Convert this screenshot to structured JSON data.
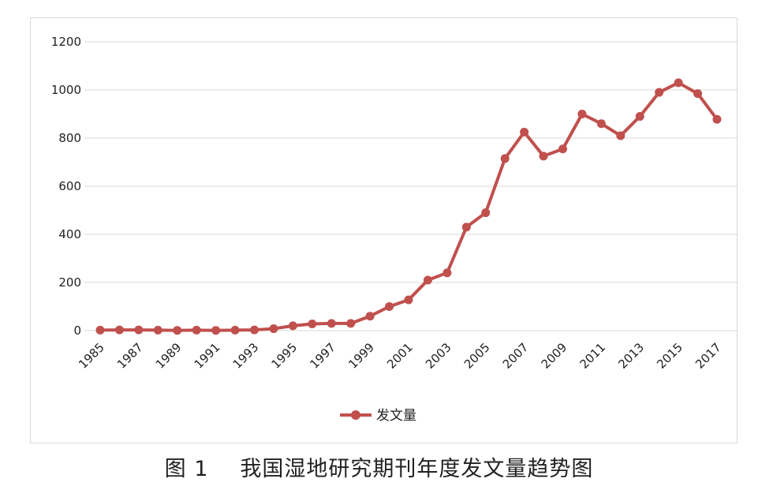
{
  "chart_data": {
    "type": "line",
    "x": [
      1985,
      1986,
      1987,
      1988,
      1989,
      1990,
      1991,
      1992,
      1993,
      1994,
      1995,
      1996,
      1997,
      1998,
      1999,
      2000,
      2001,
      2002,
      2003,
      2004,
      2005,
      2006,
      2007,
      2008,
      2009,
      2010,
      2011,
      2012,
      2013,
      2014,
      2015,
      2016,
      2017
    ],
    "x_tick_labels": [
      "1985",
      "1987",
      "1989",
      "1991",
      "1993",
      "1995",
      "1997",
      "1999",
      "2001",
      "2003",
      "2005",
      "2007",
      "2009",
      "2011",
      "2013",
      "2015",
      "2017"
    ],
    "series": [
      {
        "name": "发文量",
        "color": "#c0504d",
        "values": [
          2,
          3,
          3,
          2,
          1,
          2,
          1,
          2,
          3,
          8,
          20,
          28,
          30,
          30,
          60,
          100,
          128,
          210,
          240,
          430,
          490,
          715,
          825,
          725,
          755,
          900,
          860,
          810,
          890,
          990,
          1030,
          985,
          878
        ]
      }
    ],
    "ylim": [
      0,
      1200
    ],
    "y_ticks": [
      0,
      200,
      400,
      600,
      800,
      1000,
      1200
    ],
    "grid": true,
    "legend_position": "bottom"
  },
  "caption": {
    "figure_number": "图 1",
    "title": "我国湿地研究期刊年度发文量趋势图"
  }
}
